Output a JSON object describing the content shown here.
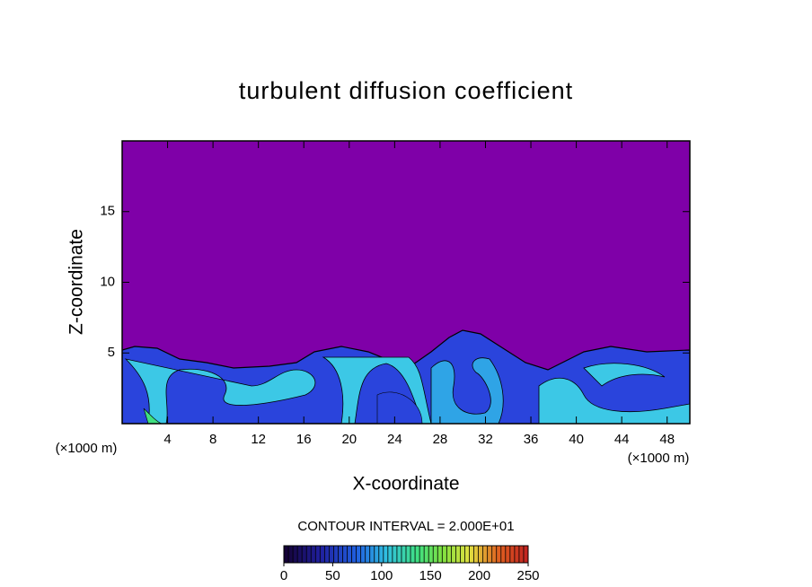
{
  "chart_data": {
    "type": "contour",
    "title": "turbulent diffusion coefficient",
    "xlabel": "X-coordinate",
    "ylabel": "Z-coordinate",
    "xunit": "(×1000 m)",
    "yunit": "(×1000 m)",
    "xlim": [
      0,
      50
    ],
    "xticks": [
      4,
      8,
      12,
      16,
      20,
      24,
      28,
      32,
      36,
      40,
      44,
      48
    ],
    "ylim": [
      0,
      20
    ],
    "yticks": [
      5,
      10,
      15
    ],
    "contour_interval_label": "CONTOUR INTERVAL = 2.000E+01",
    "colorbar": {
      "lim": [
        0,
        250
      ],
      "ticks": [
        0,
        50,
        100,
        150,
        200,
        250
      ]
    }
  }
}
